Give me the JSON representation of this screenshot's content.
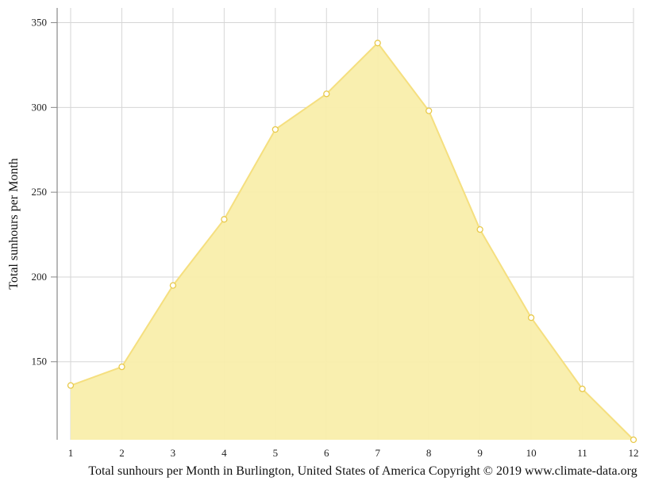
{
  "chart_data": {
    "type": "area",
    "x": [
      1,
      2,
      3,
      4,
      5,
      6,
      7,
      8,
      9,
      10,
      11,
      12
    ],
    "xticks": [
      "1",
      "2",
      "3",
      "4",
      "5",
      "6",
      "7",
      "8",
      "9",
      "10",
      "11",
      "12"
    ],
    "values": [
      136,
      147,
      195,
      234,
      287,
      308,
      338,
      298,
      228,
      176,
      134,
      104
    ],
    "ylabel": "Total sunhours per Month",
    "yticks": [
      150,
      200,
      250,
      300,
      350
    ],
    "ylim": [
      104,
      354
    ],
    "xlim": [
      1,
      12
    ],
    "grid": true,
    "caption": "Total sunhours per Month in Burlington, United States of America Copyright © 2019 www.climate-data.org",
    "colors": {
      "area_fill": "#f9eeab",
      "line": "#f5df7f",
      "marker_stroke": "#e8c94a",
      "grid": "#d6d6d6",
      "axis": "#888888"
    }
  }
}
